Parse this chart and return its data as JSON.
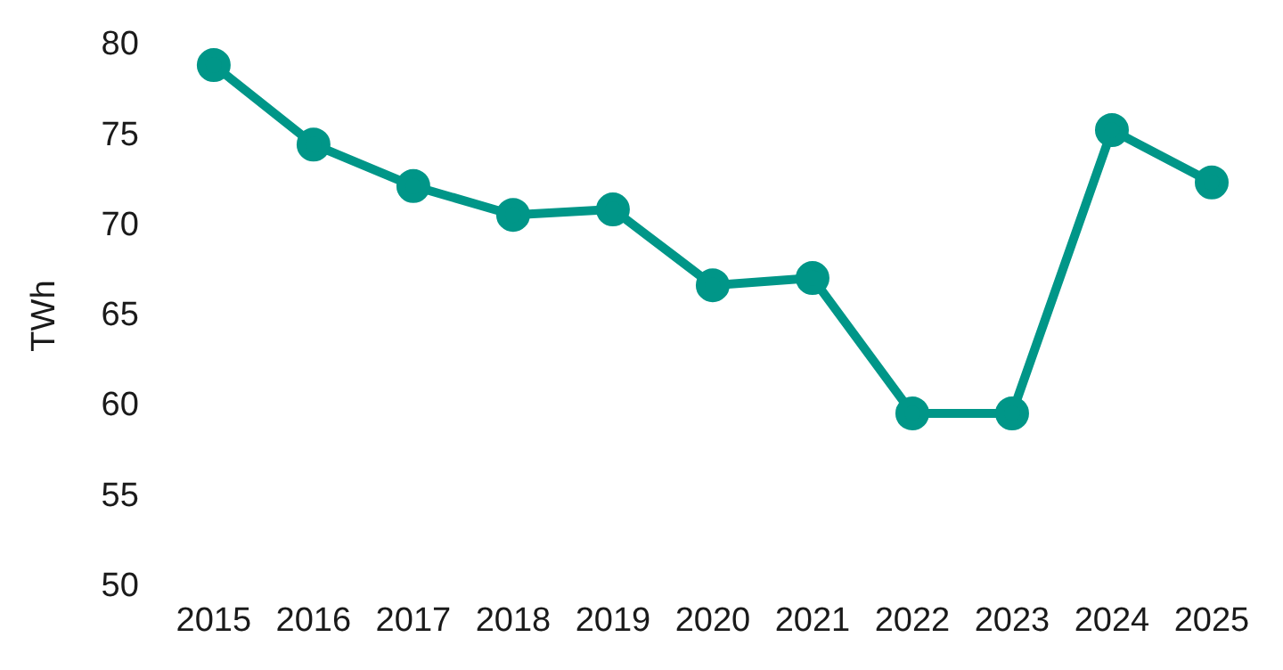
{
  "chart_data": {
    "type": "line",
    "ylabel": "TWh",
    "categories": [
      "2015",
      "2016",
      "2017",
      "2018",
      "2019",
      "2020",
      "2021",
      "2022",
      "2023",
      "2024",
      "2025"
    ],
    "series": [
      {
        "color": "#009688",
        "values": [
          78.9,
          74.5,
          72.2,
          70.6,
          70.9,
          66.7,
          67.1,
          59.6,
          59.6,
          75.3,
          72.4
        ]
      }
    ],
    "ylim": [
      50,
      80
    ],
    "yticks": [
      50,
      55,
      60,
      65,
      70,
      75,
      80
    ],
    "grid": false,
    "legend": false,
    "marker": "circle",
    "line_style": "solid"
  }
}
